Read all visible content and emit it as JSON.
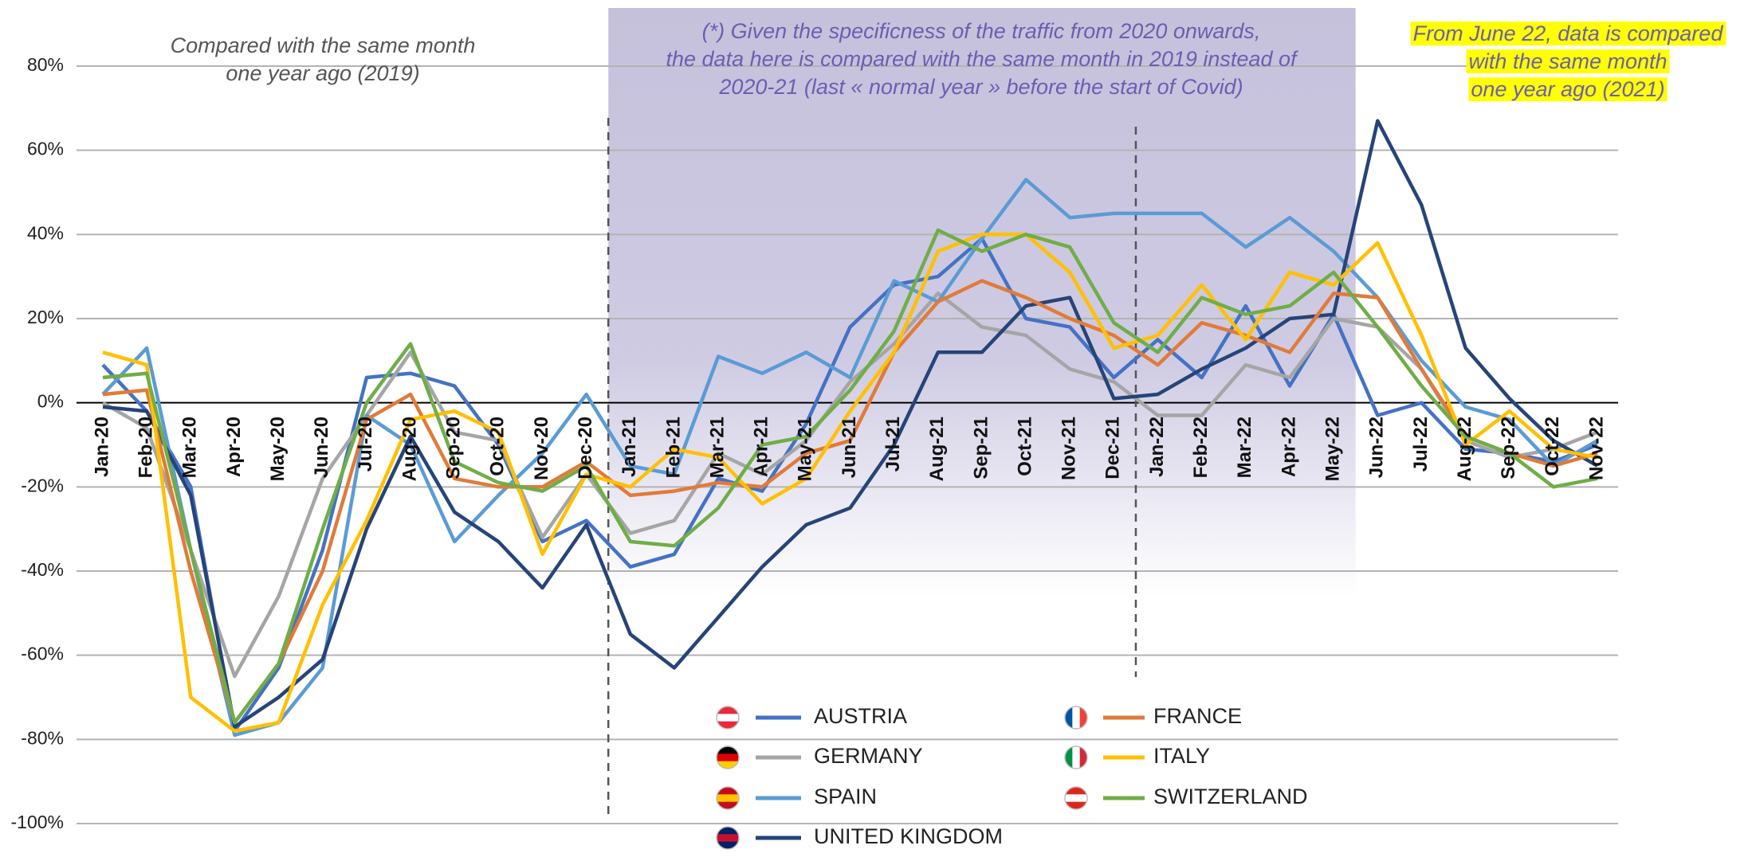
{
  "chart_data": {
    "type": "line",
    "annotations": [
      [
        "Compared with the same month",
        "one year ago (2019)"
      ],
      [
        "(*) Given the specificness of the traffic from 2020 onwards,",
        "the data here is compared with the same month in 2019  instead of",
        "2020-21 (last « normal year » before the start of Covid)"
      ],
      [
        "From June 22, data is compared",
        "with the same month",
        "one year ago (2021)"
      ]
    ],
    "categories": [
      "Jan-20",
      "Feb-20",
      "Mar-20",
      "Apr-20",
      "May-20",
      "Jun-20",
      "Jul-20",
      "Aug-20",
      "Sep-20",
      "Oct-20",
      "Nov-20",
      "Dec-20",
      "Jan-21",
      "Feb-21",
      "Mar-21",
      "Apr-21",
      "May-21",
      "Jun-21",
      "Jul-21",
      "Aug-21",
      "Sep-21",
      "Oct-21",
      "Nov-21",
      "Dec-21",
      "Jan-22",
      "Feb-22",
      "Mar-22",
      "Apr-22",
      "May-22",
      "Jun-22",
      "Jul-22",
      "Aug-22",
      "Sep-22",
      "Oct-22",
      "Nov-22"
    ],
    "series": [
      {
        "name": "AUSTRIA",
        "color": "#4472c4",
        "values": [
          9,
          -2,
          -20,
          -78,
          -63,
          -35,
          6,
          7,
          4,
          -10,
          -33,
          -28,
          -39,
          -36,
          -18,
          -21,
          -5,
          18,
          28,
          30,
          39,
          20,
          18,
          6,
          15,
          6,
          23,
          4,
          21,
          -3,
          0,
          -11,
          -12,
          -14,
          -10
        ]
      },
      {
        "name": "GERMANY",
        "color": "#a5a5a5",
        "values": [
          0,
          -6,
          -35,
          -65,
          -46,
          -18,
          -3,
          12,
          -7,
          -9,
          -32,
          -17,
          -31,
          -28,
          -12,
          -17,
          -9,
          5,
          14,
          26,
          18,
          16,
          8,
          5,
          -3,
          -3,
          9,
          6,
          20,
          18,
          8,
          -9,
          -13,
          -11,
          -7
        ]
      },
      {
        "name": "SPAIN",
        "color": "#5b9bd5",
        "values": [
          2,
          13,
          -35,
          -79,
          -76,
          -63,
          -3,
          -10,
          -33,
          -22,
          -12,
          2,
          -15,
          -17,
          11,
          7,
          12,
          6,
          29,
          24,
          39,
          53,
          44,
          45,
          45,
          45,
          37,
          44,
          36,
          25,
          10,
          -1,
          -4,
          -15,
          -9
        ]
      },
      {
        "name": "UNITED KINGDOM",
        "color": "#264478",
        "values": [
          -1,
          -2,
          -22,
          -77,
          -70,
          -61,
          -30,
          -8,
          -26,
          -33,
          -44,
          -29,
          -55,
          -63,
          -51,
          -39,
          -29,
          -25,
          -10,
          12,
          12,
          23,
          25,
          1,
          2,
          8,
          13,
          20,
          21,
          67,
          47,
          13,
          1,
          -9,
          -15
        ]
      },
      {
        "name": "FRANCE",
        "color": "#e07b39",
        "values": [
          2,
          3,
          -40,
          -76,
          -62,
          -40,
          -4,
          2,
          -18,
          -20,
          -20,
          -14,
          -22,
          -21,
          -19,
          -20,
          -12,
          -9,
          12,
          24,
          29,
          25,
          20,
          16,
          9,
          19,
          16,
          12,
          26,
          25,
          8,
          -8,
          -12,
          -15,
          -12
        ]
      },
      {
        "name": "ITALY",
        "color": "#ffc000",
        "values": [
          12,
          9,
          -70,
          -78,
          -76,
          -48,
          -28,
          -4,
          -2,
          -7,
          -36,
          -17,
          -20,
          -11,
          -13,
          -24,
          -18,
          -2,
          12,
          36,
          40,
          40,
          31,
          13,
          16,
          28,
          15,
          31,
          28,
          38,
          16,
          -10,
          -2,
          -11,
          -13
        ]
      },
      {
        "name": "SWITZERLAND",
        "color": "#70ad47",
        "values": [
          6,
          7,
          -35,
          -76,
          -62,
          -30,
          0,
          14,
          -14,
          -19,
          -21,
          -15,
          -33,
          -34,
          -25,
          -10,
          -8,
          3,
          17,
          41,
          36,
          40,
          37,
          19,
          12,
          25,
          21,
          23,
          31,
          18,
          4,
          -8,
          -12,
          -20,
          -18
        ]
      }
    ],
    "ylim": [
      -100,
      80
    ],
    "yticks": [
      {
        "value": -100,
        "label": "-100%"
      },
      {
        "value": -80,
        "label": "-80%"
      },
      {
        "value": -60,
        "label": "-60%"
      },
      {
        "value": -40,
        "label": "-40%"
      },
      {
        "value": -20,
        "label": "-20%"
      },
      {
        "value": 0,
        "label": "0%"
      },
      {
        "value": 20,
        "label": "20%"
      },
      {
        "value": 40,
        "label": "40%"
      },
      {
        "value": 60,
        "label": "60%"
      },
      {
        "value": 80,
        "label": "80%"
      }
    ],
    "grid": true
  }
}
